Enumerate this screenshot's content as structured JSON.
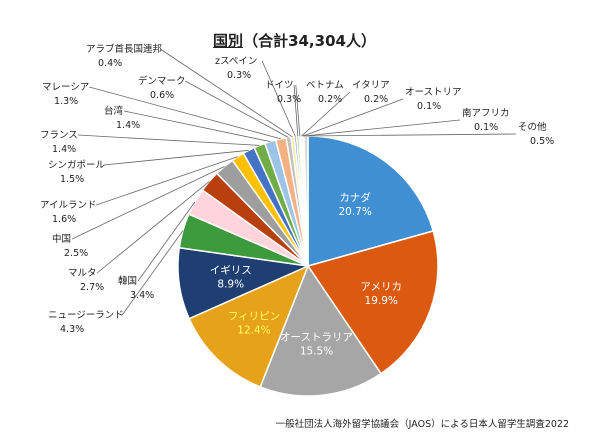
{
  "chart_data": {
    "type": "pie",
    "title_main": "国別",
    "title_sub": "（合計34,304人）",
    "source": "一般社団法人海外留学協議会（JAOS）による日本人留学生調査2022",
    "slices": [
      {
        "label": "カナダ",
        "value": 20.7,
        "pct": "20.7%",
        "color": "#3f8fd2",
        "text": "#ffffff"
      },
      {
        "label": "アメリカ",
        "value": 19.9,
        "pct": "19.9%",
        "color": "#db5a10",
        "text": "#ffffff"
      },
      {
        "label": "オーストラリア",
        "value": 15.5,
        "pct": "15.5%",
        "color": "#a6a6a6",
        "text": "#ffffff"
      },
      {
        "label": "フィリピン",
        "value": 12.4,
        "pct": "12.4%",
        "color": "#e6a21a",
        "text": "#ffff66"
      },
      {
        "label": "イギリス",
        "value": 8.9,
        "pct": "8.9%",
        "color": "#1f3f73",
        "text": "#ffffff"
      },
      {
        "label": "ニュージーランド",
        "value": 4.3,
        "pct": "4.3%",
        "color": "#3d9a3d"
      },
      {
        "label": "韓国",
        "value": 3.4,
        "pct": "3.4%",
        "color": "#ffd4dc"
      },
      {
        "label": "マルタ",
        "value": 2.7,
        "pct": "2.7%",
        "color": "#b8400f"
      },
      {
        "label": "中国",
        "value": 2.5,
        "pct": "2.5%",
        "color": "#9e9e9e"
      },
      {
        "label": "アイルランド",
        "value": 1.6,
        "pct": "1.6%",
        "color": "#ffc000"
      },
      {
        "label": "シンガポール",
        "value": 1.5,
        "pct": "1.5%",
        "color": "#4472c4"
      },
      {
        "label": "フランス",
        "value": 1.4,
        "pct": "1.4%",
        "color": "#70ad47"
      },
      {
        "label": "台湾",
        "value": 1.4,
        "pct": "1.4%",
        "color": "#9dc3e6"
      },
      {
        "label": "マレーシア",
        "value": 1.3,
        "pct": "1.3%",
        "color": "#f4b183"
      },
      {
        "label": "デンマーク",
        "value": 0.6,
        "pct": "0.6%",
        "color": "#bfbfbf"
      },
      {
        "label": "アラブ首長国連邦",
        "value": 0.4,
        "pct": "0.4%",
        "color": "#ffe699"
      },
      {
        "label": "zスペイン",
        "value": 0.3,
        "pct": "0.3%",
        "color": "#8faadc"
      },
      {
        "label": "ドイツ",
        "value": 0.3,
        "pct": "0.3%",
        "color": "#a9d18e"
      },
      {
        "label": "ベトナム",
        "value": 0.2,
        "pct": "0.2%",
        "color": "#2e75b6"
      },
      {
        "label": "イタリア",
        "value": 0.2,
        "pct": "0.2%",
        "color": "#c55a11"
      },
      {
        "label": "オーストリア",
        "value": 0.1,
        "pct": "0.1%",
        "color": "#7f7f7f"
      },
      {
        "label": "南アフリカ",
        "value": 0.1,
        "pct": "0.1%",
        "color": "#bf9000"
      },
      {
        "label": "その他",
        "value": 0.5,
        "pct": "0.5%",
        "color": "#d9d9d9"
      }
    ]
  }
}
